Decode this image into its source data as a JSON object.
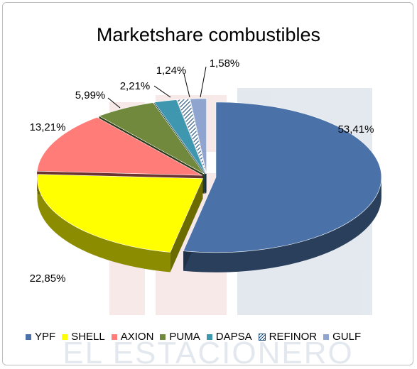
{
  "chart_data": {
    "type": "pie",
    "title": "Marketshare combustibles",
    "categories": [
      "YPF",
      "SHELL",
      "AXION",
      "PUMA",
      "DAPSA",
      "REFINOR",
      "GULF"
    ],
    "values": [
      53.41,
      22.85,
      13.21,
      5.99,
      2.21,
      1.24,
      1.58
    ],
    "data_labels": [
      "53,41%",
      "22,85%",
      "13,21%",
      "5,99%",
      "2,21%",
      "1,24%",
      "1,58%"
    ],
    "colors": [
      "#4a72a8",
      "#ffff00",
      "#ff7c78",
      "#70893c",
      "#3e97ae",
      "#1f4e79",
      "#8fa5cf"
    ],
    "style": "3d-exploded",
    "legend_placement": "bottom"
  },
  "watermark": {
    "text": "EL ESTACIONERO"
  }
}
